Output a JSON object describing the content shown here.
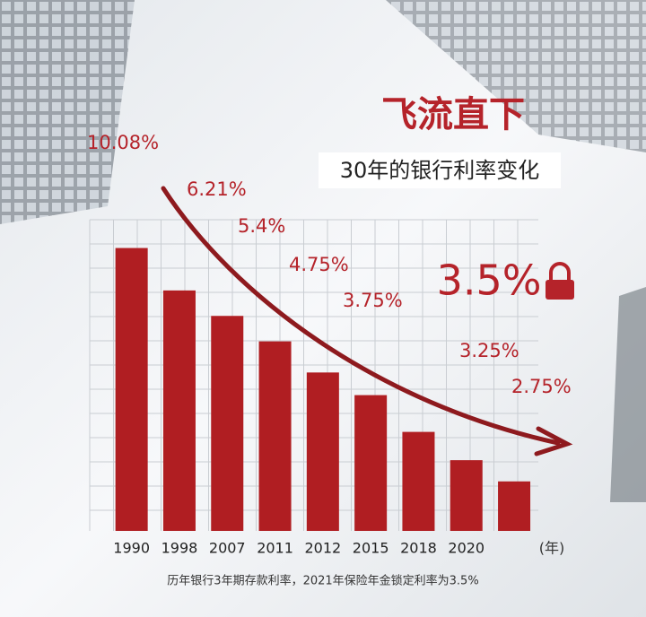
{
  "chart_data": {
    "type": "bar",
    "title": "飞流直下",
    "subtitle": "30年的银行利率变化",
    "categories": [
      "1990",
      "1998",
      "2007",
      "2011",
      "2012",
      "2015",
      "2018",
      "2020",
      null
    ],
    "values": [
      10.0,
      8.5,
      7.6,
      6.7,
      5.6,
      4.8,
      3.5,
      2.5,
      1.75
    ],
    "color": "#b01e22",
    "ylim": [
      0,
      11
    ],
    "annotations": [
      "10.08%",
      "6.21%",
      "5.4%",
      "4.75%",
      "3.75%",
      "3.25%",
      "2.75%"
    ],
    "highlight": "3.5%",
    "x_unit": "(年)",
    "footnote": "历年银行3年期存款利率，2021年保险年金锁定利率为3.5%"
  }
}
